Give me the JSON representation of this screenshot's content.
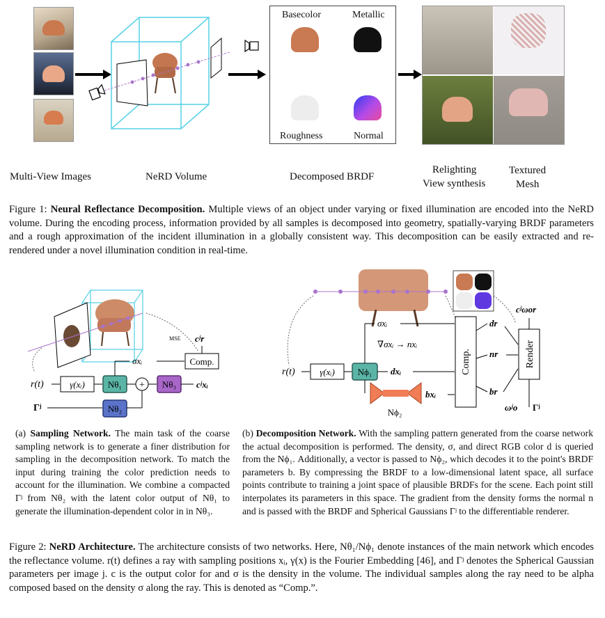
{
  "figure1": {
    "labels": {
      "multiview": "Multi-View Images",
      "nerd_volume": "NeRD Volume",
      "decomposed": "Decomposed BRDF",
      "relighting": "Relighting",
      "view_synthesis": "View synthesis",
      "textured": "Textured",
      "mesh": "Mesh"
    },
    "brdf": {
      "basecolor": "Basecolor",
      "metallic": "Metallic",
      "roughness": "Roughness",
      "normal": "Normal"
    },
    "caption_prefix": "Figure 1:",
    "caption_bold": "Neural Reflectance Decomposition.",
    "caption_text": "Multiple views of an object under varying or fixed illumination are encoded into the NeRD volume. During the encoding process, information provided by all samples is decomposed into geometry, spatially-varying BRDF parameters and a rough approximation of the incident illumination in a globally consistent way. This decomposition can be easily extracted and re-rendered under a novel illumination condition in real-time."
  },
  "figure2": {
    "sub_a": {
      "prefix": "(a)",
      "bold": "Sampling Network.",
      "text": "The main task of the coarse sampling network is to generate a finer distribution for sampling in the decomposition network. To match the input during training the color prediction needs to account for the illumination. We combine a compacted Γʲ from Nθ₂ with the latent color output of Nθ₁ to generate the illumination-dependent color in in Nθ₃."
    },
    "sub_b": {
      "prefix": "(b)",
      "bold": "Decomposition Network.",
      "text": "With the sampling pattern generated from the coarse network the actual decomposition is performed. The density, σ, and direct RGB color d is queried from the Nϕ₁. Additionally, a vector is passed to Nϕ₂, which decodes it to the point's BRDF parameters b. By compressing the BRDF to a low-dimensional latent space, all surface points contribute to training a joint space of plausible BRDFs for the scene. Each point still interpolates its parameters in this space. The gradient from the density forms the normal n and is passed with the BRDF and Spherical Gaussians Γʲ to the differentiable renderer."
    },
    "caption_prefix": "Figure 2:",
    "caption_bold": "NeRD Architecture.",
    "caption_text": "The architecture consists of two networks. Here, Nθ₁/Nϕ₁ denote instances of the main network which encodes the reflectance volume. r(t) defines a ray with sampling positions xᵢ, γ(x) is the Fourier Embedding [46], and Γʲ denotes the Spherical Gaussian parameters per image j. c is the output color for and σ is the density in the volume. The individual samples along the ray need to be alpha composed based on the density σ along the ray. This is denoted as “Comp.”."
  },
  "diagram_a": {
    "r_t": "r(t)",
    "gamma": "γ(xᵢ)",
    "n_theta1": "Nθ₁",
    "n_theta2": "Nθ₂",
    "n_theta3": "Nθ₃",
    "sigma": "σxᵢ",
    "comp": "Comp.",
    "mse": "MSE",
    "c_r": "cʲr",
    "c_x": "cʲxᵢ",
    "gamma_j": "Γʲ",
    "plus": "+"
  },
  "diagram_b": {
    "r_t": "r(t)",
    "gamma": "γ(xᵢ)",
    "n_phi1": "Nϕ₁",
    "n_phi2": "Nϕ₂",
    "sigma": "σxᵢ",
    "grad": "∇σxᵢ → nxᵢ",
    "d_x": "dxᵢ",
    "b_x": "bxᵢ",
    "comp": "Comp.",
    "render": "Render",
    "d_r": "dr",
    "n_r": "nr",
    "b_r": "br",
    "c_out": "cʲωor",
    "omega": "ωʲo",
    "gamma_j": "Γʲ"
  },
  "colors": {
    "teal": "#5ab5a6",
    "purple": "#a866c8",
    "blue": "#5b73c8",
    "orange": "#f07d55",
    "cyan": "#5fd3e8",
    "ray": "#a874cc"
  }
}
